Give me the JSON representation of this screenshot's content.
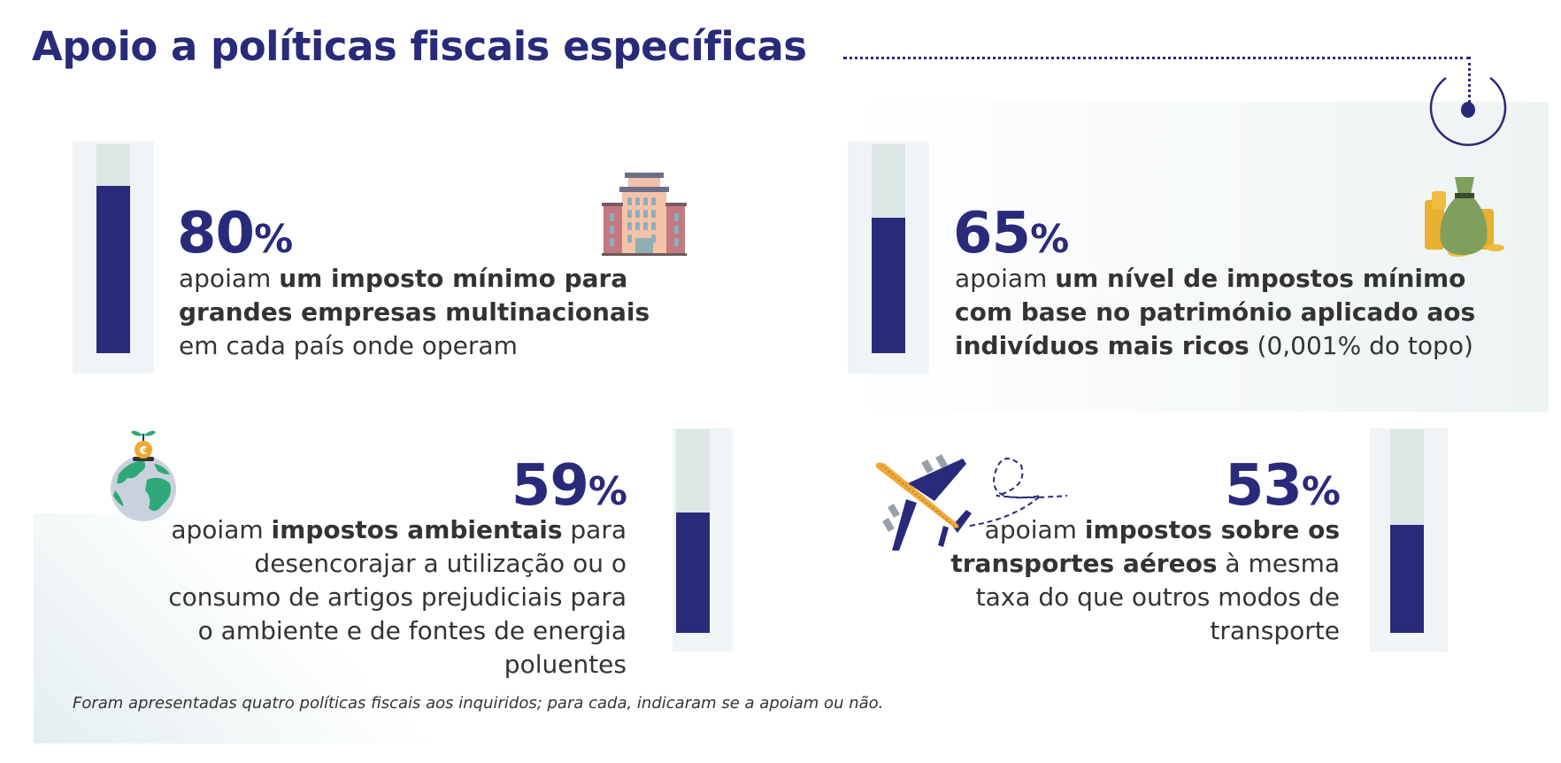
{
  "title": "Apoio a políticas fiscais específicas",
  "footnote": "Foram apresentadas quatro políticas fiscais aos inquiridos; para cada, indicaram se a apoiam ou não.",
  "colors": {
    "accent": "#2a2a7a",
    "track": "#dce6e5",
    "text": "#333333"
  },
  "chart_data": {
    "type": "bar",
    "title": "Apoio a políticas fiscais específicas",
    "unit": "%",
    "ylim": [
      0,
      100
    ],
    "categories": [
      "um imposto mínimo para grandes empresas multinacionais",
      "um nível de impostos mínimo com base no património aplicado aos indivíduos mais ricos",
      "impostos ambientais",
      "impostos sobre os transportes aéreos"
    ],
    "values": [
      80,
      65,
      59,
      53
    ]
  },
  "items": [
    {
      "value": 80,
      "value_label": "80",
      "sign": "%",
      "icon": "office-building-icon",
      "lead": "apoiam ",
      "bold": "um imposto mínimo para grandes empresas multinacionais",
      "tail": " em cada país onde operam"
    },
    {
      "value": 65,
      "value_label": "65",
      "sign": "%",
      "icon": "money-bag-icon",
      "lead": "apoiam ",
      "bold": "um nível de impostos mínimo com base no património aplicado aos indivíduos mais ricos",
      "tail": " (0,001% do topo)"
    },
    {
      "value": 59,
      "value_label": "59",
      "sign": "%",
      "icon": "globe-coin-plant-icon",
      "lead": "apoiam ",
      "bold": "impostos ambientais",
      "tail": " para desencorajar a utilização ou o consumo de artigos prejudiciais para o ambiente e de fontes de energia poluentes"
    },
    {
      "value": 53,
      "value_label": "53",
      "sign": "%",
      "icon": "airplane-icon",
      "lead": "apoiam ",
      "bold": "impostos sobre os transportes aéreos",
      "tail": " à mesma taxa do que outros modos de transporte"
    }
  ]
}
